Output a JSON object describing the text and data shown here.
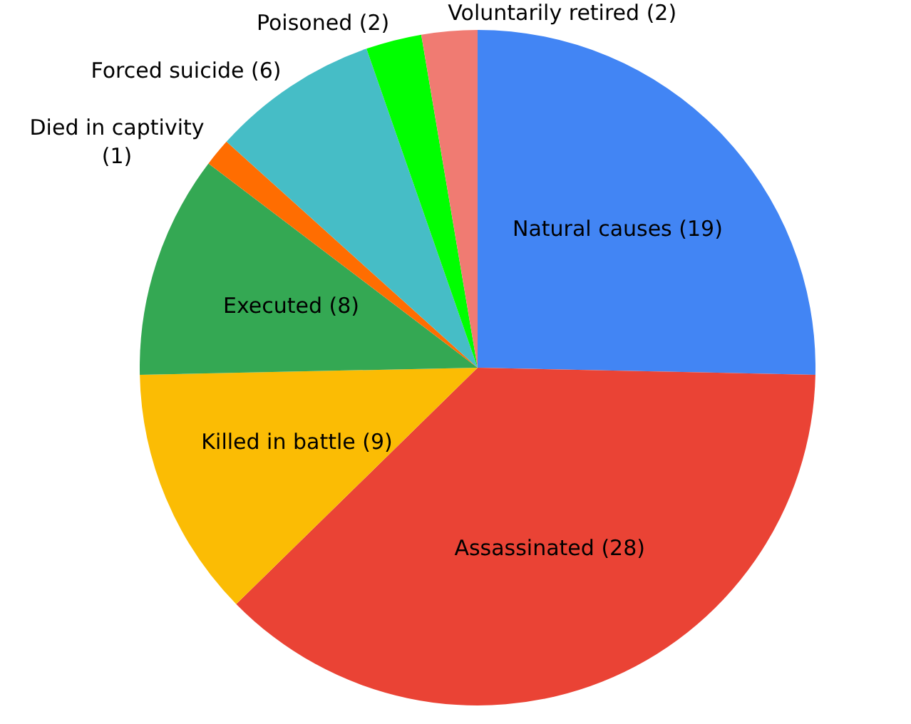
{
  "chart_data": {
    "type": "pie",
    "categories": [
      "Natural causes",
      "Assassinated",
      "Killed in battle",
      "Executed",
      "Died in captivity",
      "Forced suicide",
      "Poisoned",
      "Voluntarily retired"
    ],
    "values": [
      19,
      28,
      9,
      8,
      1,
      6,
      2,
      2
    ],
    "colors": [
      "#4285f4",
      "#ea4335",
      "#fbbc04",
      "#34a853",
      "#ff6d01",
      "#46bdc6",
      "#00ff00",
      "#f07b72"
    ],
    "value_labels": [
      "(19)",
      "(28)",
      "(9)",
      "(8)",
      "(1)",
      "(6)",
      "(2)",
      "(2)"
    ]
  }
}
